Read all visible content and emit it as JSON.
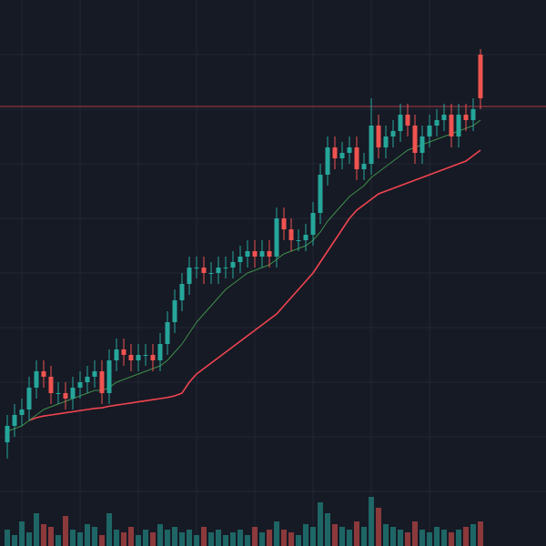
{
  "chart_data": {
    "type": "candlestick",
    "ylim": [
      0,
      100
    ],
    "yticks": [
      10,
      20,
      30,
      40,
      50,
      60,
      70,
      80,
      90
    ],
    "xticks": [
      2,
      10,
      18,
      26,
      34,
      42,
      50,
      58
    ],
    "grid": true,
    "up_color": "#26a69a",
    "down_color": "#ef5350",
    "open": [
      19,
      22,
      24,
      25,
      29,
      32,
      31,
      28,
      28,
      27,
      29,
      30,
      31,
      32,
      28,
      34,
      36,
      35,
      34,
      35,
      35,
      34,
      37,
      41,
      45,
      48,
      51,
      51,
      50,
      50,
      51,
      51,
      52,
      53,
      54,
      53,
      54,
      53,
      60,
      58,
      56,
      56,
      57,
      61,
      68,
      73,
      71,
      72,
      73,
      69,
      70,
      77,
      73,
      75,
      76,
      79,
      77,
      72,
      75,
      77,
      78,
      79,
      75,
      79,
      78,
      90
    ],
    "high": [
      24,
      26,
      27,
      31,
      34,
      34,
      33,
      30,
      30,
      31,
      32,
      33,
      34,
      34,
      36,
      38,
      38,
      37,
      37,
      37,
      37,
      39,
      43,
      47,
      50,
      53,
      53,
      53,
      52,
      53,
      53,
      54,
      55,
      56,
      56,
      56,
      56,
      62,
      62,
      60,
      58,
      59,
      63,
      70,
      75,
      75,
      74,
      75,
      75,
      72,
      82,
      79,
      77,
      78,
      81,
      81,
      79,
      77,
      79,
      80,
      81,
      81,
      81,
      81,
      82,
      91
    ],
    "low": [
      16,
      20,
      22,
      23,
      27,
      29,
      26,
      26,
      25,
      25,
      27,
      28,
      29,
      26,
      26,
      32,
      33,
      32,
      32,
      33,
      32,
      32,
      35,
      39,
      43,
      46,
      49,
      48,
      48,
      48,
      49,
      49,
      50,
      51,
      51,
      51,
      51,
      51,
      56,
      54,
      54,
      54,
      55,
      59,
      66,
      69,
      69,
      70,
      67,
      67,
      68,
      71,
      71,
      73,
      74,
      75,
      70,
      70,
      73,
      75,
      76,
      73,
      73,
      76,
      76,
      80
    ],
    "close": [
      22,
      24,
      25,
      29,
      32,
      31,
      28,
      28,
      27,
      29,
      30,
      31,
      32,
      28,
      34,
      36,
      35,
      34,
      35,
      35,
      34,
      37,
      41,
      45,
      48,
      51,
      51,
      50,
      50,
      51,
      51,
      52,
      53,
      54,
      53,
      54,
      53,
      60,
      58,
      56,
      56,
      57,
      61,
      68,
      73,
      71,
      72,
      73,
      69,
      70,
      77,
      73,
      75,
      76,
      79,
      77,
      72,
      75,
      77,
      78,
      79,
      75,
      79,
      78,
      80,
      82
    ],
    "volume_ylim": [
      0,
      100
    ],
    "volume": [
      30,
      20,
      45,
      25,
      60,
      40,
      35,
      20,
      55,
      30,
      25,
      40,
      35,
      20,
      60,
      30,
      25,
      35,
      20,
      30,
      25,
      40,
      30,
      35,
      25,
      30,
      20,
      35,
      25,
      30,
      20,
      25,
      30,
      20,
      35,
      25,
      30,
      45,
      30,
      25,
      20,
      40,
      35,
      80,
      60,
      40,
      35,
      30,
      45,
      35,
      90,
      70,
      40,
      35,
      30,
      25,
      45,
      30,
      25,
      35,
      30,
      25,
      30,
      35,
      40,
      45
    ],
    "ma_fast": {
      "color": "#3f8f4a",
      "values": [
        21,
        21.5,
        22,
        23,
        24,
        25,
        25.5,
        26,
        26.5,
        27,
        27.5,
        28,
        28.5,
        28.5,
        29,
        30,
        30.5,
        31,
        31.5,
        32,
        32.5,
        33,
        34,
        35.5,
        37,
        39,
        41,
        42.5,
        44,
        45.5,
        47,
        48,
        49,
        50,
        50.5,
        51,
        51.5,
        52.5,
        53.5,
        54,
        54.5,
        55,
        56,
        57.5,
        59.5,
        61,
        62.5,
        64,
        65,
        66,
        67.5,
        68.5,
        69.5,
        70.5,
        71.5,
        72.5,
        73,
        73.5,
        74,
        74.5,
        75,
        75.5,
        76,
        76.5,
        77,
        78
      ]
    },
    "ma_slow": {
      "color": "#f0444f",
      "values": [
        null,
        null,
        null,
        23,
        23.5,
        23.8,
        24,
        24.2,
        24.4,
        24.6,
        24.8,
        25,
        25.2,
        25.3,
        25.6,
        25.8,
        26,
        26.2,
        26.4,
        26.6,
        26.8,
        27,
        27.2,
        27.5,
        28,
        30,
        31.5,
        32.5,
        33.5,
        34.5,
        35.5,
        36.5,
        37.5,
        38.5,
        39.5,
        40.5,
        41.5,
        42.5,
        44,
        45.5,
        47,
        48.5,
        50,
        52,
        54,
        56,
        58,
        60,
        61.5,
        62.5,
        63.5,
        64.5,
        65,
        65.5,
        66,
        66.5,
        67,
        67.5,
        68,
        68.5,
        69,
        69.5,
        70,
        70.5,
        71.5,
        72.5
      ]
    },
    "price_line": {
      "value": 80.5,
      "color": "#b03a48"
    }
  }
}
